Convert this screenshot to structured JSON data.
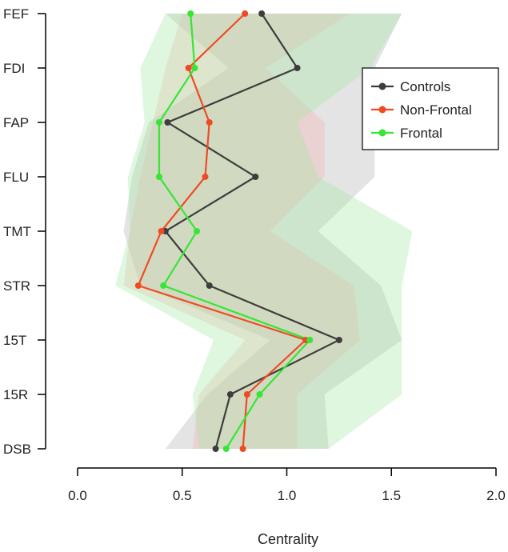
{
  "chart_data": {
    "type": "line",
    "title": "",
    "xlabel": "Centrality",
    "ylabel": "",
    "xlim": [
      0.0,
      2.0
    ],
    "x_ticks": [
      "0.0",
      "0.5",
      "1.0",
      "1.5",
      "2.0"
    ],
    "categories": [
      "FEF",
      "FDI",
      "FAP",
      "FLU",
      "TMT",
      "STR",
      "15T",
      "15R",
      "DSB"
    ],
    "legend_position": "top-right",
    "grid": false,
    "series": [
      {
        "name": "Controls",
        "color": "#3d3d3d",
        "band_color": "#b3b3b3",
        "values": [
          0.88,
          1.05,
          0.43,
          0.85,
          0.42,
          0.63,
          1.25,
          0.73,
          0.66
        ],
        "lower": [
          0.42,
          0.72,
          0.34,
          0.26,
          0.22,
          0.3,
          0.92,
          0.62,
          0.42
        ],
        "upper": [
          1.55,
          1.42,
          1.42,
          1.42,
          1.15,
          1.45,
          1.55,
          1.18,
          1.2
        ]
      },
      {
        "name": "Non-Frontal",
        "color": "#f04a23",
        "band_color": "#f5b3b3",
        "values": [
          0.8,
          0.53,
          0.63,
          0.61,
          0.4,
          0.29,
          1.09,
          0.81,
          0.79
        ],
        "lower": [
          0.5,
          0.42,
          0.36,
          0.3,
          0.25,
          0.22,
          0.8,
          0.58,
          0.55
        ],
        "upper": [
          1.3,
          0.9,
          1.18,
          1.18,
          0.92,
          1.32,
          1.35,
          1.05,
          1.05
        ]
      },
      {
        "name": "Frontal",
        "color": "#35e635",
        "band_color": "#a3e8a3",
        "values": [
          0.54,
          0.56,
          0.39,
          0.39,
          0.57,
          0.41,
          1.11,
          0.87,
          0.71
        ],
        "lower": [
          0.42,
          0.3,
          0.32,
          0.24,
          0.25,
          0.18,
          0.65,
          0.55,
          0.58
        ],
        "upper": [
          1.55,
          1.4,
          1.05,
          1.15,
          1.6,
          1.55,
          1.55,
          1.55,
          1.2
        ]
      }
    ]
  }
}
